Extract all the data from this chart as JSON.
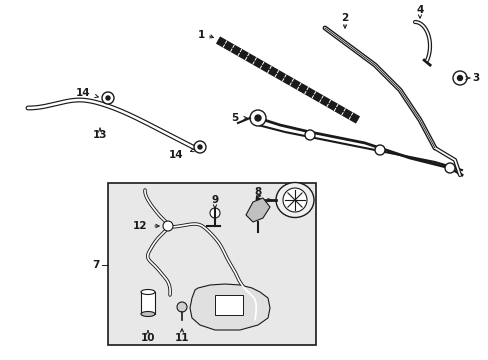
{
  "bg_color": "#ffffff",
  "box_bg": "#e8e8e8",
  "fig_width": 4.89,
  "fig_height": 3.6,
  "dpi": 100,
  "line_color": "#1a1a1a",
  "font_size": 7.5
}
